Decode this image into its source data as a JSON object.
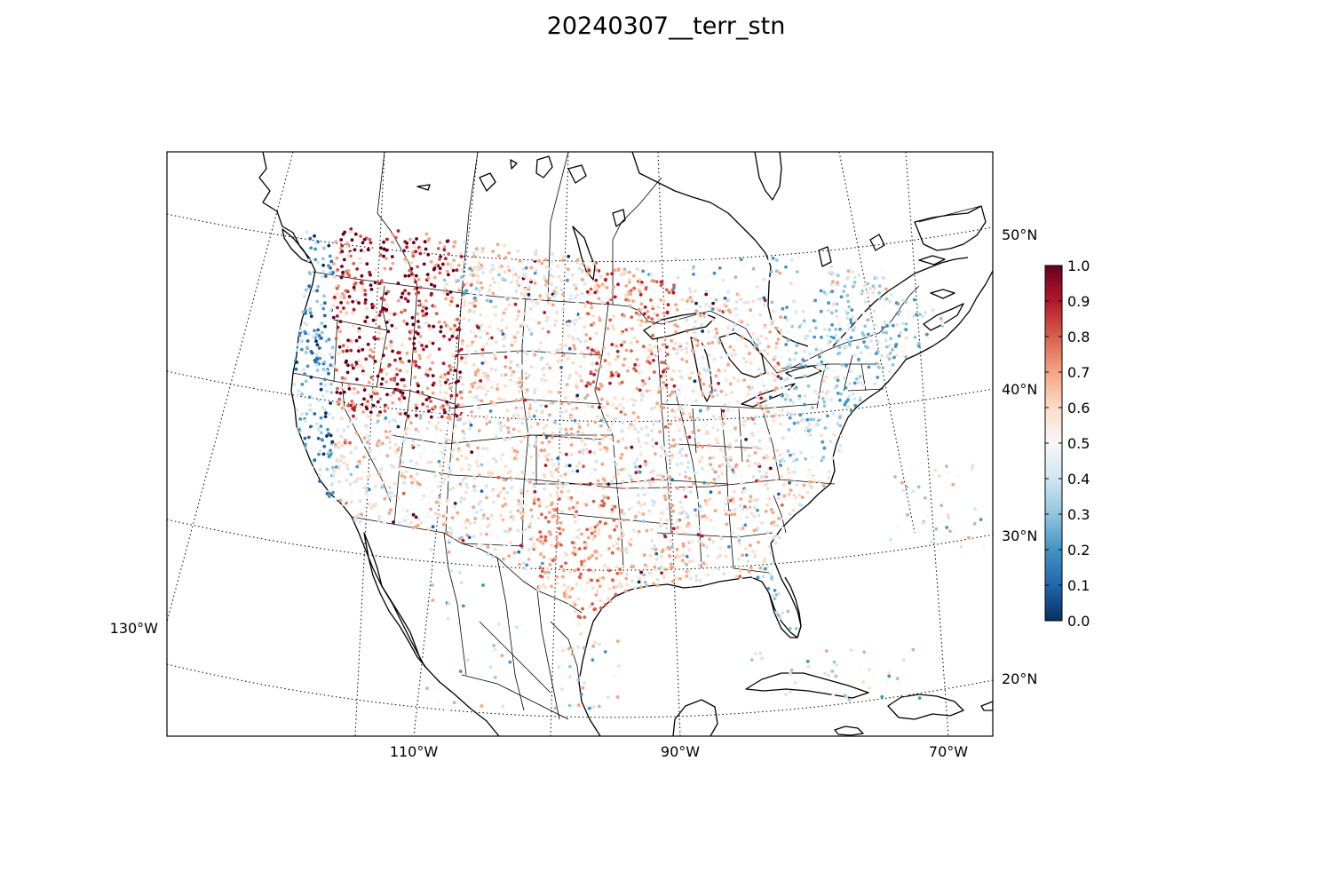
{
  "title": "20240307__terr_stn",
  "map": {
    "projection": "lambert-conformal",
    "region": "North America (CONUS, southern Canada, northern Mexico, Caribbean)",
    "graticule": "dotted",
    "longitude_labels": [
      "130°W",
      "110°W",
      "90°W",
      "70°W"
    ],
    "latitude_labels": [
      "50°N",
      "40°N",
      "30°N",
      "20°N"
    ],
    "marker": "small filled circles at station locations",
    "colormap": "RdBu_r",
    "density_regions": [
      {
        "name": "interior-northwest",
        "dominant_range": "0.7-1.0"
      },
      {
        "name": "pacific-coast",
        "dominant_range": "0.0-0.4"
      },
      {
        "name": "upper-midwest",
        "dominant_range": "0.6-1.0"
      },
      {
        "name": "southern-plains",
        "dominant_range": "0.6-0.8"
      },
      {
        "name": "northeast",
        "dominant_range": "0.2-0.5"
      },
      {
        "name": "florida",
        "dominant_range": "0.2-0.4"
      }
    ]
  },
  "colorbar": {
    "range": [
      0.0,
      1.0
    ],
    "tick_labels": [
      "1.0",
      "0.9",
      "0.8",
      "0.7",
      "0.6",
      "0.5",
      "0.4",
      "0.3",
      "0.2",
      "0.1",
      "0.0"
    ],
    "colors": [
      "#67001f",
      "#b2182b",
      "#d6604d",
      "#f4a582",
      "#fddbc7",
      "#f7f7f7",
      "#d1e5f0",
      "#92c5de",
      "#4393c3",
      "#2166ac",
      "#053061"
    ]
  }
}
